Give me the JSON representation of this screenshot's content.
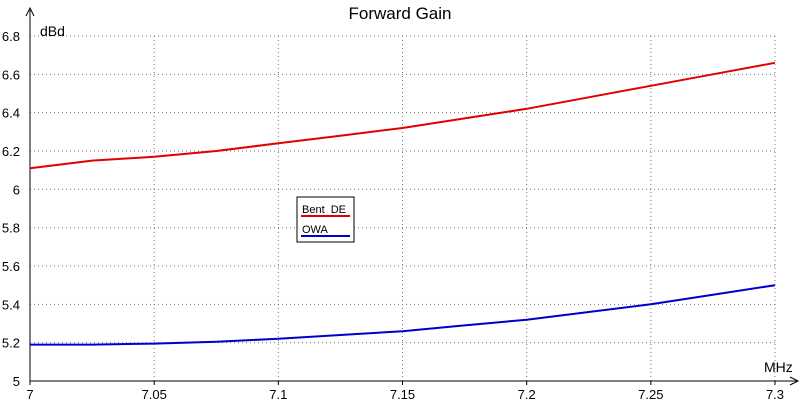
{
  "chart_data": {
    "type": "line",
    "title": "Forward Gain",
    "xlabel": "MHz",
    "ylabel": "dBd",
    "xlim": [
      7.0,
      7.3
    ],
    "ylim": [
      5.0,
      6.8
    ],
    "x_ticks": [
      7,
      7.05,
      7.1,
      7.15,
      7.2,
      7.25,
      7.3
    ],
    "x_tick_labels": [
      "7",
      "7.05",
      "7.1",
      "7.15",
      "7.2",
      "7.25",
      "7.3"
    ],
    "y_ticks": [
      5,
      5.2,
      5.4,
      5.6,
      5.8,
      6,
      6.2,
      6.4,
      6.6,
      6.8
    ],
    "y_tick_labels": [
      "5",
      "5.2",
      "5.4",
      "5.6",
      "5.8",
      "6",
      "6.2",
      "6.4",
      "6.6",
      "6.8"
    ],
    "grid": true,
    "legend_position": "center-left",
    "series": [
      {
        "name": "Bent  DE",
        "color": "#e00000",
        "x": [
          7.0,
          7.025,
          7.05,
          7.075,
          7.1,
          7.125,
          7.15,
          7.175,
          7.2,
          7.225,
          7.25,
          7.275,
          7.3
        ],
        "values": [
          6.11,
          6.15,
          6.17,
          6.2,
          6.24,
          6.28,
          6.32,
          6.37,
          6.42,
          6.48,
          6.54,
          6.6,
          6.66
        ]
      },
      {
        "name": "OWA",
        "color": "#0000cc",
        "x": [
          7.0,
          7.025,
          7.05,
          7.075,
          7.1,
          7.125,
          7.15,
          7.175,
          7.2,
          7.225,
          7.25,
          7.275,
          7.3
        ],
        "values": [
          5.19,
          5.19,
          5.195,
          5.205,
          5.22,
          5.24,
          5.26,
          5.29,
          5.32,
          5.36,
          5.4,
          5.45,
          5.5
        ]
      }
    ]
  }
}
